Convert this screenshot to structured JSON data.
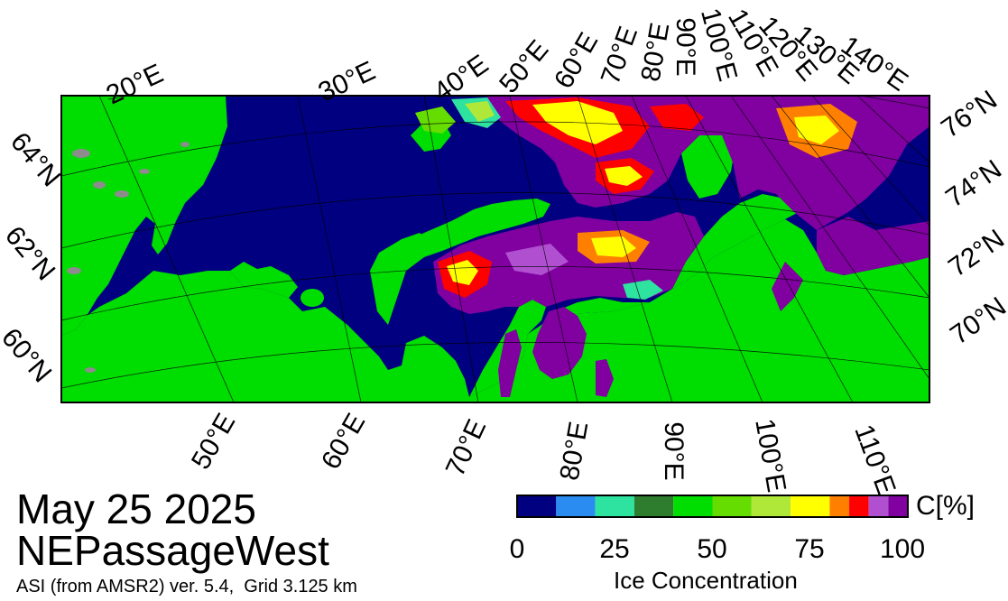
{
  "title": {
    "date": "May 25 2025",
    "region": "NEPassageWest",
    "product": "ASI (from AMSR2) ver. 5.4,  Grid 3.125 km"
  },
  "colorbar": {
    "title": "Ice Concentration",
    "unit": "C[%]",
    "ticks": [
      "0",
      "25",
      "50",
      "75",
      "100"
    ],
    "range": [
      0,
      100
    ],
    "bins": [
      {
        "range": [
          0,
          10
        ],
        "color": "#000080"
      },
      {
        "range": [
          10,
          20
        ],
        "color": "#2a8cf0"
      },
      {
        "range": [
          20,
          30
        ],
        "color": "#2ee2a0"
      },
      {
        "range": [
          30,
          40
        ],
        "color": "#2e7d2e"
      },
      {
        "range": [
          40,
          50
        ],
        "color": "#00dd00"
      },
      {
        "range": [
          50,
          60
        ],
        "color": "#66dd00"
      },
      {
        "range": [
          60,
          70
        ],
        "color": "#b0e83a"
      },
      {
        "range": [
          70,
          80
        ],
        "color": "#ffff00"
      },
      {
        "range": [
          80,
          85
        ],
        "color": "#ff8000"
      },
      {
        "range": [
          85,
          90
        ],
        "color": "#ff0000"
      },
      {
        "range": [
          90,
          95
        ],
        "color": "#b050d0"
      },
      {
        "range": [
          95,
          100
        ],
        "color": "#8000a0"
      }
    ]
  },
  "map": {
    "colors": {
      "ocean": "#000080",
      "land": "#00dd00",
      "land_ice": "#8c8c8c",
      "sea_ice": "#8000a0"
    },
    "top_lon_labels": [
      "20°E",
      "30°E",
      "40°E",
      "50°E",
      "60°E",
      "70°E",
      "80°E",
      "90°E",
      "100°E",
      "110°E",
      "120°E",
      "130°E",
      "140°E"
    ],
    "bottom_lon_labels": [
      "50°E",
      "60°E",
      "70°E",
      "80°E",
      "90°E",
      "100°E",
      "110°E"
    ],
    "left_lat_labels": [
      "64°N",
      "62°N",
      "60°N"
    ],
    "right_lat_labels": [
      "76°N",
      "74°N",
      "72°N",
      "70°N"
    ]
  }
}
